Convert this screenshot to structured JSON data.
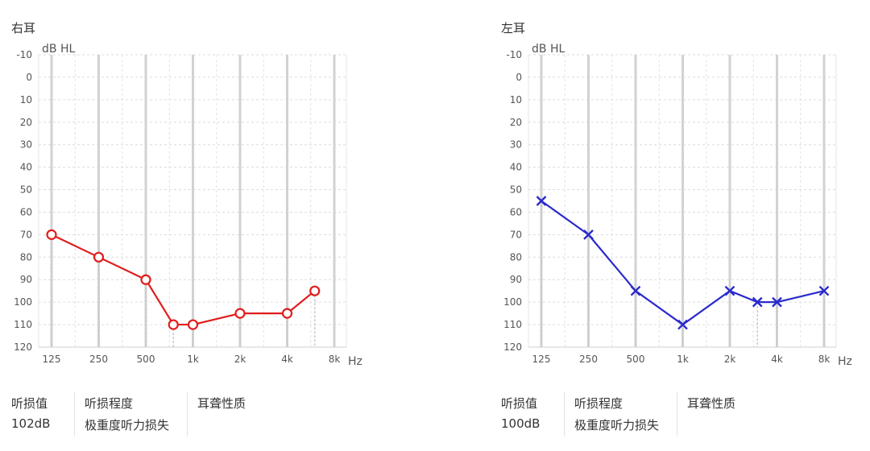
{
  "chart_data": [
    {
      "type": "line",
      "title": "右耳",
      "ylabel": "dB HL",
      "xlabel": "Hz",
      "y_ticks": [
        -10,
        0,
        10,
        20,
        30,
        40,
        50,
        60,
        70,
        80,
        90,
        100,
        110,
        120
      ],
      "ylim": [
        -10,
        120
      ],
      "y_inverted": true,
      "x_scale": "log",
      "x_ticks": [
        {
          "hz": 125,
          "label": "125"
        },
        {
          "hz": 250,
          "label": "250"
        },
        {
          "hz": 500,
          "label": "500"
        },
        {
          "hz": 1000,
          "label": "1k"
        },
        {
          "hz": 2000,
          "label": "2k"
        },
        {
          "hz": 4000,
          "label": "4k"
        },
        {
          "hz": 8000,
          "label": "8k"
        }
      ],
      "grid": true,
      "series": [
        {
          "marker": "circle",
          "color": "#e11d1d",
          "points": [
            {
              "hz": 125,
              "db": 70
            },
            {
              "hz": 250,
              "db": 80
            },
            {
              "hz": 500,
              "db": 90
            },
            {
              "hz": 750,
              "db": 110
            },
            {
              "hz": 1000,
              "db": 110
            },
            {
              "hz": 2000,
              "db": 105
            },
            {
              "hz": 4000,
              "db": 105
            },
            {
              "hz": 6000,
              "db": 95
            }
          ]
        }
      ],
      "info": {
        "loss_value_label": "听损值",
        "loss_value": "102dB",
        "loss_degree_label": "听损程度",
        "loss_degree": "极重度听力损失",
        "hearing_type_label": "耳聋性质",
        "hearing_type": ""
      }
    },
    {
      "type": "line",
      "title": "左耳",
      "ylabel": "dB HL",
      "xlabel": "Hz",
      "y_ticks": [
        -10,
        0,
        10,
        20,
        30,
        40,
        50,
        60,
        70,
        80,
        90,
        100,
        110,
        120
      ],
      "ylim": [
        -10,
        120
      ],
      "y_inverted": true,
      "x_scale": "log",
      "x_ticks": [
        {
          "hz": 125,
          "label": "125"
        },
        {
          "hz": 250,
          "label": "250"
        },
        {
          "hz": 500,
          "label": "500"
        },
        {
          "hz": 1000,
          "label": "1k"
        },
        {
          "hz": 2000,
          "label": "2k"
        },
        {
          "hz": 4000,
          "label": "4k"
        },
        {
          "hz": 8000,
          "label": "8k"
        }
      ],
      "grid": true,
      "series": [
        {
          "marker": "cross",
          "color": "#2a2acc",
          "points": [
            {
              "hz": 125,
              "db": 55
            },
            {
              "hz": 250,
              "db": 70
            },
            {
              "hz": 500,
              "db": 95
            },
            {
              "hz": 1000,
              "db": 110
            },
            {
              "hz": 2000,
              "db": 95
            },
            {
              "hz": 3000,
              "db": 100
            },
            {
              "hz": 4000,
              "db": 100
            },
            {
              "hz": 8000,
              "db": 95
            }
          ]
        }
      ],
      "info": {
        "loss_value_label": "听损值",
        "loss_value": "100dB",
        "loss_degree_label": "听损程度",
        "loss_degree": "极重度听力损失",
        "hearing_type_label": "耳聋性质",
        "hearing_type": ""
      }
    }
  ]
}
